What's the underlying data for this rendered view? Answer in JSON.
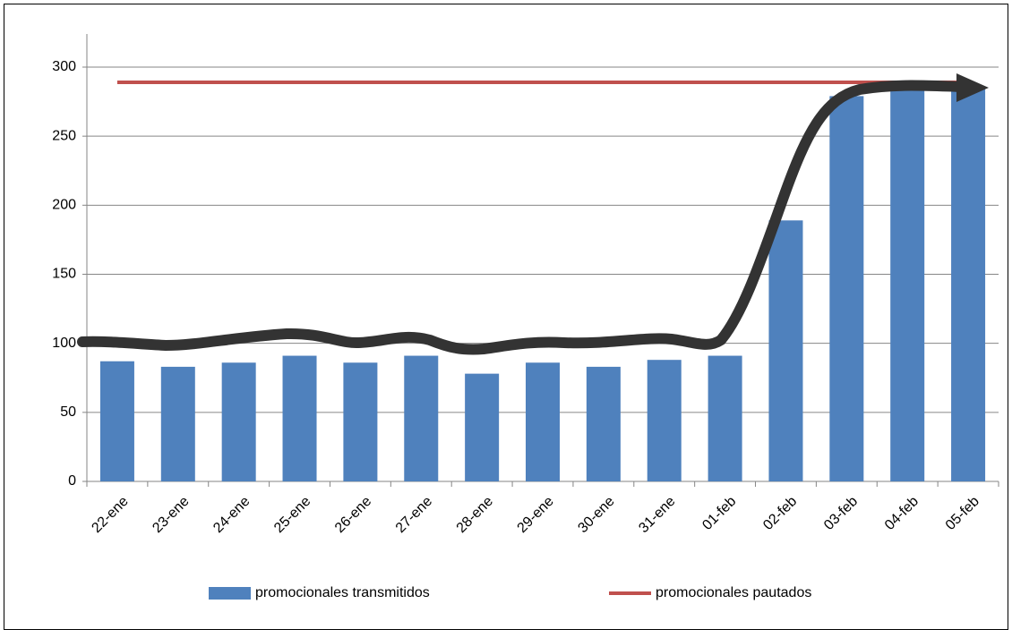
{
  "chart_data": {
    "type": "bar",
    "categories": [
      "22-ene",
      "23-ene",
      "24-ene",
      "25-ene",
      "26-ene",
      "27-ene",
      "28-ene",
      "29-ene",
      "30-ene",
      "31-ene",
      "01-feb",
      "02-feb",
      "03-feb",
      "04-feb",
      "05-feb"
    ],
    "series": [
      {
        "name": "promocionales transmitidos",
        "type": "bar",
        "color": "#4f81bd",
        "values": [
          87,
          83,
          86,
          91,
          86,
          91,
          78,
          86,
          83,
          88,
          91,
          189,
          279,
          285,
          285
        ]
      },
      {
        "name": "promocionales pautados",
        "type": "line",
        "color": "#c0504d",
        "values": [
          289,
          289,
          289,
          289,
          289,
          289,
          289,
          289,
          289,
          289,
          289,
          289,
          289,
          289,
          289
        ]
      }
    ],
    "ylim": [
      0,
      300
    ],
    "yticks": [
      0,
      50,
      100,
      150,
      200,
      250,
      300
    ],
    "grid": true,
    "legend": "bottom"
  }
}
